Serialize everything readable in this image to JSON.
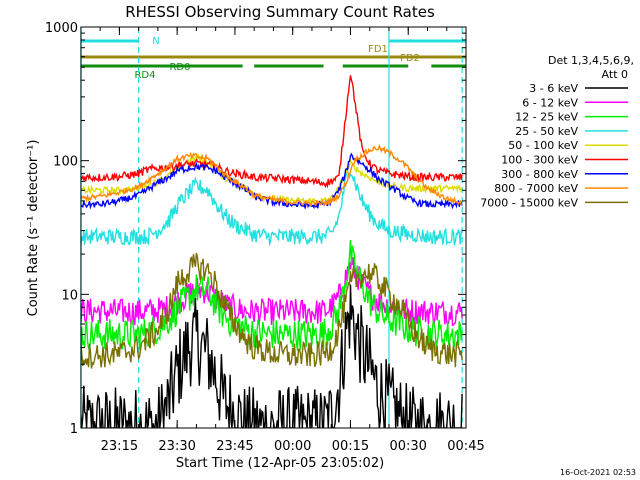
{
  "chart_data": {
    "type": "line",
    "title": "RHESSI Observing Summary Count Rates",
    "xlabel": "Start Time (12-Apr-05 23:05:02)",
    "ylabel": "Count Rate (s⁻¹ detector⁻¹)",
    "y_scale": "log",
    "ylim": [
      1,
      1000
    ],
    "xlim": [
      "23:05:02",
      "00:45:00"
    ],
    "x_ticks": [
      "23:15",
      "23:30",
      "23:45",
      "00:00",
      "00:15",
      "00:30",
      "00:45"
    ],
    "y_ticks": [
      "1",
      "10",
      "100",
      "1000"
    ],
    "grid": false,
    "legend_position": "right",
    "legend_header": [
      "Det 1,3,4,5,6,9,",
      "Att 0"
    ],
    "timestamp": "16-Oct-2021 02:53",
    "flags": [
      {
        "label": "N",
        "color": "#22e0e0",
        "segments": [
          [
            "23:05",
            "23:20"
          ],
          [
            "00:25",
            "00:45"
          ]
        ]
      },
      {
        "label": "FD1",
        "color": "#9c8a10",
        "segments": [
          [
            "23:05",
            "00:45"
          ]
        ]
      },
      {
        "label": "FD2",
        "color": "#9c8a10",
        "segments": []
      },
      {
        "label": "RD0",
        "color": "#108c10",
        "segments": [
          [
            "23:05",
            "23:47"
          ],
          [
            "23:50",
            "00:08"
          ],
          [
            "00:13",
            "00:30"
          ],
          [
            "00:36",
            "00:45"
          ]
        ]
      },
      {
        "label": "RD4",
        "color": "#108c10",
        "segments": []
      }
    ],
    "vlines": [
      {
        "time": "23:05",
        "style": "solid",
        "color": "#22e0e0"
      },
      {
        "time": "23:20",
        "style": "dashed",
        "color": "#22e0e0"
      },
      {
        "time": "00:25",
        "style": "solid",
        "color": "#22e0e0"
      },
      {
        "time": "00:44",
        "style": "dashed",
        "color": "#22e0e0"
      }
    ],
    "x": [
      "23:05",
      "23:10",
      "23:15",
      "23:20",
      "23:22",
      "23:25",
      "23:28",
      "23:30",
      "23:33",
      "23:35",
      "23:38",
      "23:40",
      "23:42",
      "23:45",
      "23:48",
      "23:50",
      "23:55",
      "00:00",
      "00:05",
      "00:08",
      "00:10",
      "00:12",
      "00:14",
      "00:15",
      "00:16",
      "00:18",
      "00:20",
      "00:22",
      "00:25",
      "00:28",
      "00:30",
      "00:32",
      "00:35",
      "00:40",
      "00:44"
    ],
    "series": [
      {
        "name": "3 - 6 keV",
        "color": "#000000",
        "values": [
          1,
          1,
          1,
          1,
          1,
          1,
          1.6,
          2.6,
          4.1,
          4.6,
          3.5,
          2.5,
          1.6,
          1.3,
          1,
          1,
          1,
          1,
          1,
          1,
          1.2,
          2.1,
          5.5,
          7.5,
          6,
          3.8,
          2.8,
          2,
          1.5,
          1.2,
          1,
          1,
          1,
          1,
          1
        ]
      },
      {
        "name": "6 - 12 keV",
        "color": "#ff00ff",
        "values": [
          7.5,
          7.5,
          7.4,
          7.4,
          7.5,
          7.6,
          8,
          8.8,
          10,
          11,
          10.5,
          9.5,
          8.5,
          7.8,
          7.5,
          7.4,
          7.4,
          7.4,
          7.4,
          7.4,
          8,
          9.5,
          14,
          17,
          15,
          12,
          10,
          9,
          8.2,
          7.8,
          7.5,
          7.5,
          7.4,
          7.4,
          7.4
        ]
      },
      {
        "name": "12 - 25 keV",
        "color": "#00ee00",
        "values": [
          5,
          5,
          5,
          5,
          5.2,
          5.6,
          6.5,
          7.8,
          9.5,
          11,
          10.5,
          8.5,
          7,
          6,
          5.5,
          5.2,
          5,
          5,
          5,
          5.1,
          5.8,
          7.5,
          14,
          20,
          16,
          12,
          9,
          7.5,
          6.5,
          6,
          5.5,
          5.3,
          5.1,
          5,
          5
        ]
      },
      {
        "name": "25 - 50 keV",
        "color": "#22e0e0",
        "values": [
          27,
          27,
          27,
          27,
          27,
          30,
          36,
          46,
          58,
          65,
          60,
          48,
          40,
          33,
          30,
          28,
          27,
          27,
          27,
          27,
          28,
          38,
          75,
          90,
          72,
          50,
          40,
          34,
          30,
          29,
          28,
          28,
          27,
          27,
          27
        ]
      },
      {
        "name": "50 - 100 keV",
        "color": "#dddd00",
        "values": [
          60,
          60,
          60,
          62,
          65,
          70,
          78,
          88,
          100,
          105,
          98,
          88,
          75,
          68,
          62,
          55,
          52,
          50,
          50,
          50,
          52,
          62,
          85,
          95,
          90,
          80,
          75,
          70,
          65,
          63,
          62,
          62,
          62,
          62,
          62
        ]
      },
      {
        "name": "100 - 300 keV",
        "color": "#ff0000",
        "values": [
          75,
          75,
          76,
          80,
          85,
          88,
          90,
          92,
          94,
          95,
          94,
          90,
          85,
          80,
          78,
          75,
          74,
          72,
          70,
          68,
          70,
          75,
          250,
          460,
          300,
          120,
          95,
          85,
          80,
          78,
          76,
          75,
          75,
          75,
          75
        ]
      },
      {
        "name": "300 - 800 keV",
        "color": "#0000ff",
        "values": [
          47,
          47,
          50,
          55,
          60,
          68,
          76,
          84,
          88,
          90,
          88,
          84,
          76,
          68,
          60,
          54,
          49,
          47,
          46,
          47,
          50,
          60,
          85,
          110,
          105,
          95,
          85,
          74,
          65,
          57,
          52,
          49,
          47,
          47,
          47
        ]
      },
      {
        "name": "800 - 7000 keV",
        "color": "#ff8800",
        "values": [
          52,
          54,
          58,
          64,
          70,
          80,
          92,
          103,
          108,
          108,
          103,
          92,
          80,
          70,
          62,
          55,
          51,
          49,
          48,
          48,
          50,
          55,
          70,
          85,
          100,
          110,
          120,
          125,
          115,
          100,
          88,
          75,
          62,
          52,
          48
        ]
      },
      {
        "name": "7000 - 15000 keV",
        "color": "#7a7000",
        "values": [
          3.5,
          3.5,
          3.6,
          4,
          4.5,
          5.5,
          8,
          12,
          15,
          16.5,
          15,
          12,
          8.5,
          6,
          4.5,
          4,
          3.6,
          3.5,
          3.5,
          3.6,
          4,
          5.5,
          9,
          12,
          13,
          14,
          14.5,
          13,
          10,
          8,
          6,
          5,
          4,
          3.6,
          3.5
        ]
      }
    ]
  }
}
